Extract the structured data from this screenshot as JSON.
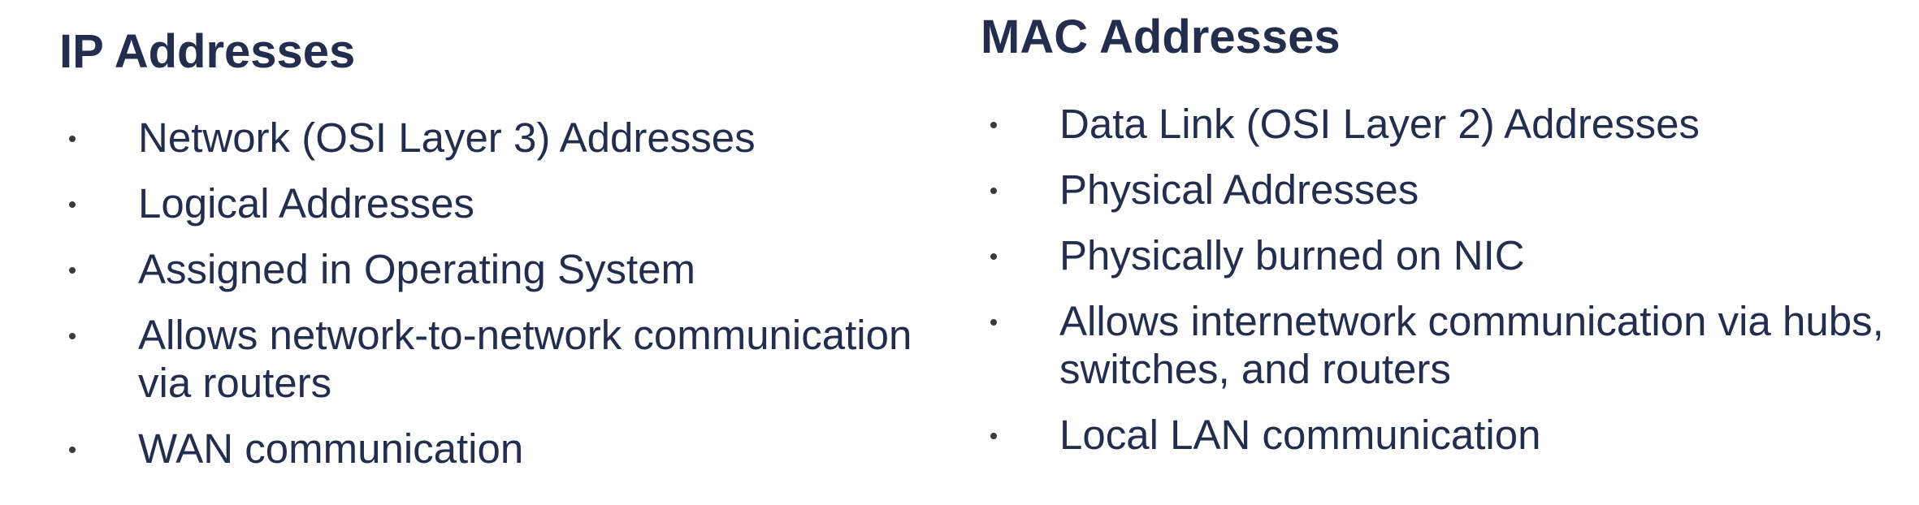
{
  "left": {
    "title": "IP Addresses",
    "items": [
      "Network (OSI Layer 3) Addresses",
      "Logical Addresses",
      "Assigned in Operating System",
      "Allows network-to-network communication via routers",
      "WAN communication"
    ]
  },
  "right": {
    "title": "MAC Addresses",
    "items": [
      "Data Link (OSI Layer 2) Addresses",
      "Physical Addresses",
      "Physically burned on NIC",
      "Allows internetwork communication via hubs, switches, and routers",
      "Local LAN communication"
    ]
  }
}
